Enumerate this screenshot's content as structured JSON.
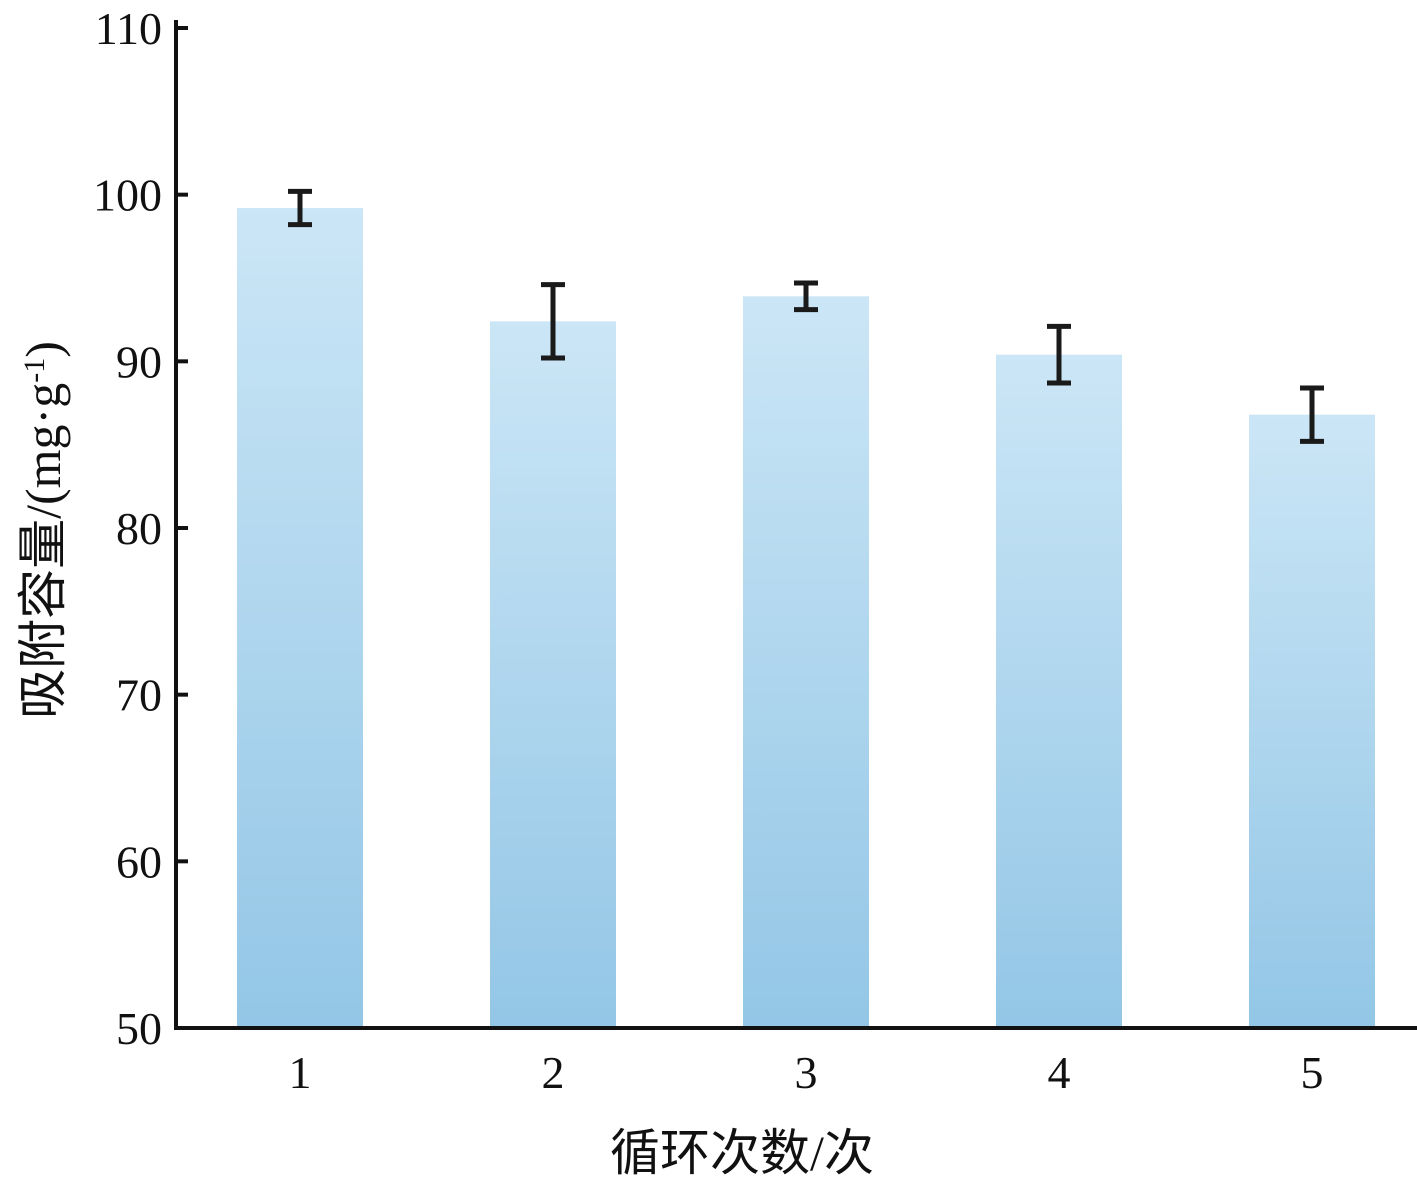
{
  "chart_data": {
    "type": "bar",
    "categories": [
      "1",
      "2",
      "3",
      "4",
      "5"
    ],
    "series": [
      {
        "values": [
          99.2,
          92.4,
          93.9,
          90.4,
          86.8
        ],
        "error": [
          1.0,
          2.2,
          0.8,
          1.7,
          1.6
        ]
      }
    ],
    "xlabel": "循环次数/次",
    "ylabel_main": "吸附容量/(mg·g",
    "ylabel_sup": "-1",
    "ylabel_close": ")",
    "ylim": [
      50,
      110
    ],
    "yticks": [
      "50",
      "60",
      "70",
      "80",
      "90",
      "100",
      "110"
    ],
    "grid": false,
    "colors": {
      "bar_top": "#cbe6f6",
      "bar_bottom": "#93c6e6",
      "error_bar": "#1a1a1a",
      "axis": "#111111"
    }
  }
}
